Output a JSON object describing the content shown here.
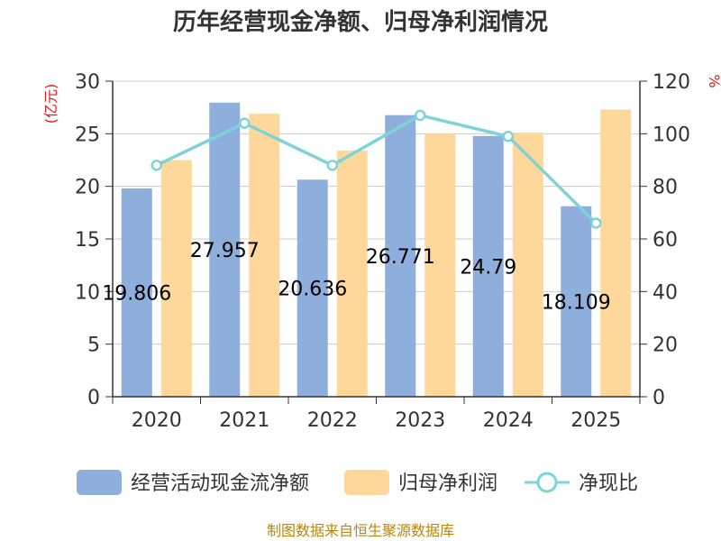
{
  "chart_data": {
    "type": "bar",
    "title": "历年经营现金净额、归母净利润情况",
    "categories": [
      "2020",
      "2021",
      "2022",
      "2023",
      "2024",
      "2025"
    ],
    "series": [
      {
        "name": "经营活动现金流净额",
        "kind": "bar",
        "axis": "left",
        "color": "#8eaedb",
        "values": [
          19.806,
          27.957,
          20.636,
          26.771,
          24.79,
          18.109
        ],
        "labels": [
          "19.806",
          "27.957",
          "20.636",
          "26.771",
          "24.79",
          "18.109"
        ]
      },
      {
        "name": "归母净利润",
        "kind": "bar",
        "axis": "left",
        "color": "#fdd89a",
        "values": [
          22.5,
          26.9,
          23.4,
          25.0,
          25.1,
          27.3
        ]
      },
      {
        "name": "净现比",
        "kind": "line",
        "axis": "right",
        "color": "#7fd3d8",
        "values": [
          88,
          104,
          88,
          107,
          99,
          66
        ]
      }
    ],
    "left_axis": {
      "label": "(亿元)",
      "ylim": [
        0,
        30
      ],
      "ticks": [
        "0",
        "5",
        "10",
        "15",
        "20",
        "25",
        "30"
      ]
    },
    "right_axis": {
      "label": "%",
      "ylim": [
        0,
        120
      ],
      "ticks": [
        "0",
        "20",
        "40",
        "60",
        "80",
        "100",
        "120"
      ]
    },
    "grid": true,
    "legend_position": "bottom"
  },
  "source_text": "制图数据来自恒生聚源数据库"
}
